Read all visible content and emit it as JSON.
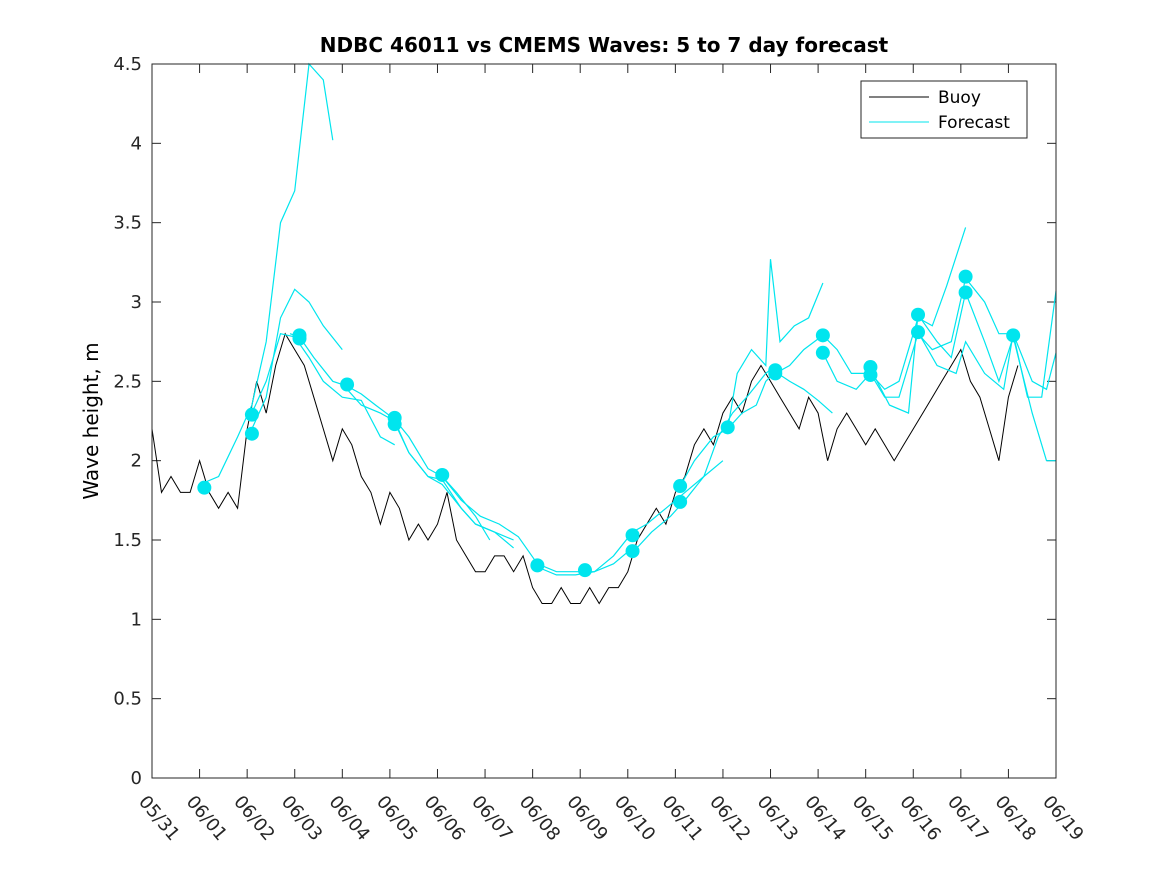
{
  "chart_data": {
    "type": "line",
    "title": "NDBC 46011 vs CMEMS Waves: 5 to 7 day forecast",
    "xlabel": "",
    "ylabel": "Wave height, m",
    "xlim": [
      0,
      19
    ],
    "ylim": [
      0,
      4.5
    ],
    "grid": false,
    "legend_position": "top-right",
    "x_tick_labels": [
      "05/31",
      "06/01",
      "06/02",
      "06/03",
      "06/04",
      "06/05",
      "06/06",
      "06/07",
      "06/08",
      "06/09",
      "06/10",
      "06/11",
      "06/12",
      "06/13",
      "06/14",
      "06/15",
      "06/16",
      "06/17",
      "06/18",
      "06/19"
    ],
    "y_ticks": [
      0,
      0.5,
      1,
      1.5,
      2,
      2.5,
      3,
      3.5,
      4,
      4.5
    ],
    "y_tick_labels": [
      "0",
      "0.5",
      "1",
      "1.5",
      "2",
      "2.5",
      "3",
      "3.5",
      "4",
      "4.5"
    ],
    "x_unit_note": "x values are days after 05/31 00:00",
    "series": [
      {
        "name": "Buoy",
        "color": "#000000",
        "x": [
          0,
          0.2,
          0.4,
          0.6,
          0.8,
          1.0,
          1.2,
          1.4,
          1.6,
          1.8,
          2.0,
          2.2,
          2.4,
          2.6,
          2.8,
          3.0,
          3.2,
          3.4,
          3.6,
          3.8,
          4.0,
          4.2,
          4.4,
          4.6,
          4.8,
          5.0,
          5.2,
          5.4,
          5.6,
          5.8,
          6.0,
          6.2,
          6.4,
          6.6,
          6.8,
          7.0,
          7.2,
          7.4,
          7.6,
          7.8,
          8.0,
          8.2,
          8.4,
          8.6,
          8.8,
          9.0,
          9.2,
          9.4,
          9.6,
          9.8,
          10.0,
          10.2,
          10.4,
          10.6,
          10.8,
          11.0,
          11.2,
          11.4,
          11.6,
          11.8,
          12.0,
          12.2,
          12.4,
          12.6,
          12.8,
          13.0,
          13.2,
          13.4,
          13.6,
          13.8,
          14.0,
          14.2,
          14.4,
          14.6,
          14.8,
          15.0,
          15.2,
          15.4,
          15.6,
          15.8,
          16.0,
          16.2,
          16.4,
          16.6,
          16.8,
          17.0,
          17.2,
          17.4,
          17.6,
          17.8,
          18.0,
          18.2
        ],
        "values": [
          2.2,
          1.8,
          1.9,
          1.8,
          1.8,
          2.0,
          1.8,
          1.7,
          1.8,
          1.7,
          2.2,
          2.5,
          2.3,
          2.6,
          2.8,
          2.7,
          2.6,
          2.4,
          2.2,
          2.0,
          2.2,
          2.1,
          1.9,
          1.8,
          1.6,
          1.8,
          1.7,
          1.5,
          1.6,
          1.5,
          1.6,
          1.8,
          1.5,
          1.4,
          1.3,
          1.3,
          1.4,
          1.4,
          1.3,
          1.4,
          1.2,
          1.1,
          1.1,
          1.2,
          1.1,
          1.1,
          1.2,
          1.1,
          1.2,
          1.2,
          1.3,
          1.5,
          1.6,
          1.7,
          1.6,
          1.8,
          1.9,
          2.1,
          2.2,
          2.1,
          2.3,
          2.4,
          2.3,
          2.5,
          2.6,
          2.5,
          2.4,
          2.3,
          2.2,
          2.4,
          2.3,
          2.0,
          2.2,
          2.3,
          2.2,
          2.1,
          2.2,
          2.1,
          2.0,
          2.1,
          2.2,
          2.3,
          2.4,
          2.5,
          2.6,
          2.7,
          2.5,
          2.4,
          2.2,
          2.0,
          2.4,
          2.6
        ]
      },
      {
        "name": "Forecast",
        "color": "#00e5ee",
        "segments": [
          {
            "x": [
              1.0,
              1.4,
              1.8,
              2.1,
              2.4,
              2.7,
              3.0,
              3.3,
              3.6,
              3.8
            ],
            "values": [
              1.85,
              1.9,
              2.15,
              2.35,
              2.75,
              3.5,
              3.7,
              4.5,
              4.4,
              4.02
            ]
          },
          {
            "x": [
              2.1,
              2.4,
              2.7,
              3.0,
              3.3,
              3.6,
              4.0
            ],
            "values": [
              2.2,
              2.4,
              2.9,
              3.08,
              3.0,
              2.85,
              2.7
            ]
          },
          {
            "x": [
              2.1,
              2.4,
              2.7,
              3.0,
              3.3,
              3.6,
              4.0,
              4.4,
              4.8,
              5.1
            ],
            "values": [
              2.3,
              2.5,
              2.8,
              2.78,
              2.65,
              2.5,
              2.4,
              2.38,
              2.15,
              2.1
            ]
          },
          {
            "x": [
              2.9,
              3.1,
              3.4,
              3.8,
              4.1,
              4.4,
              4.7,
              5.1,
              5.4,
              5.8,
              6.1,
              6.4,
              6.8,
              7.1
            ],
            "values": [
              2.8,
              2.78,
              2.65,
              2.5,
              2.47,
              2.42,
              2.35,
              2.26,
              2.15,
              1.95,
              1.9,
              1.8,
              1.65,
              1.5
            ]
          },
          {
            "x": [
              4.1,
              4.4,
              4.8,
              5.1,
              5.4,
              5.8,
              6.1,
              6.5,
              6.8,
              7.2,
              7.6
            ],
            "values": [
              2.45,
              2.35,
              2.3,
              2.25,
              2.05,
              1.9,
              1.88,
              1.7,
              1.6,
              1.55,
              1.5
            ]
          },
          {
            "x": [
              5.1,
              5.4,
              5.8,
              6.1,
              6.5,
              6.8,
              7.2,
              7.6
            ],
            "values": [
              2.24,
              2.05,
              1.9,
              1.85,
              1.7,
              1.6,
              1.55,
              1.45
            ]
          },
          {
            "x": [
              6.1,
              6.5,
              6.9,
              7.3,
              7.7,
              8.1,
              8.5,
              8.9,
              9.3,
              9.7,
              10.1
            ],
            "values": [
              1.9,
              1.75,
              1.65,
              1.6,
              1.52,
              1.35,
              1.3,
              1.3,
              1.3,
              1.35,
              1.45
            ]
          },
          {
            "x": [
              8.1,
              8.5,
              8.9,
              9.3,
              9.7,
              10.1,
              10.4,
              10.8,
              11.2,
              11.6,
              12.0
            ],
            "values": [
              1.33,
              1.28,
              1.28,
              1.3,
              1.4,
              1.55,
              1.6,
              1.7,
              1.8,
              1.9,
              2.0
            ]
          },
          {
            "x": [
              10.1,
              10.5,
              10.9,
              11.2,
              11.6,
              11.9,
              12.2,
              12.5,
              12.9,
              13.1
            ],
            "values": [
              1.42,
              1.55,
              1.65,
              1.75,
              1.9,
              2.15,
              2.3,
              2.4,
              2.55,
              2.6
            ]
          },
          {
            "x": [
              11.1,
              11.4,
              11.8,
              12.1,
              12.4,
              12.7,
              12.9,
              13.1,
              13.4,
              13.7,
              14.0,
              14.3
            ],
            "values": [
              1.84,
              2.0,
              2.15,
              2.2,
              2.3,
              2.35,
              2.5,
              2.56,
              2.5,
              2.45,
              2.38,
              2.3
            ]
          },
          {
            "x": [
              12.1,
              12.3,
              12.6,
              12.9,
              13.0,
              13.2,
              13.5,
              13.8,
              14.1
            ],
            "values": [
              2.2,
              2.55,
              2.7,
              2.6,
              3.27,
              2.75,
              2.85,
              2.9,
              3.12
            ]
          },
          {
            "x": [
              13.1,
              13.4,
              13.7,
              14.1,
              14.4,
              14.7,
              15.1,
              15.4,
              15.7,
              16.1,
              16.4,
              16.7,
              17.1
            ],
            "values": [
              2.55,
              2.6,
              2.7,
              2.79,
              2.7,
              2.55,
              2.55,
              2.45,
              2.5,
              2.9,
              2.85,
              3.1,
              3.47
            ]
          },
          {
            "x": [
              14.1,
              14.4,
              14.8,
              15.1,
              15.4,
              15.7,
              16.1,
              16.4,
              16.8,
              17.1,
              17.5,
              17.8,
              18.1,
              18.4,
              18.7,
              19.0
            ],
            "values": [
              2.68,
              2.5,
              2.45,
              2.55,
              2.4,
              2.4,
              2.8,
              2.7,
              2.75,
              3.15,
              3.0,
              2.8,
              2.8,
              2.4,
              2.4,
              3.07
            ]
          },
          {
            "x": [
              15.1,
              15.5,
              15.9,
              16.1,
              16.5,
              16.8,
              17.1,
              17.5,
              17.8,
              18.1,
              18.5,
              18.8,
              19.0
            ],
            "values": [
              2.58,
              2.35,
              2.3,
              2.92,
              2.75,
              2.65,
              3.06,
              2.75,
              2.5,
              2.78,
              2.3,
              2.0,
              2.0
            ]
          },
          {
            "x": [
              16.1,
              16.5,
              16.9,
              17.1,
              17.5,
              17.9,
              18.1,
              18.5,
              18.8,
              19.0
            ],
            "values": [
              2.81,
              2.6,
              2.55,
              2.75,
              2.55,
              2.45,
              2.8,
              2.5,
              2.45,
              2.68
            ]
          }
        ],
        "markers": {
          "x": [
            1.1,
            2.1,
            2.1,
            3.1,
            3.1,
            4.1,
            5.1,
            5.1,
            6.1,
            8.1,
            9.1,
            10.1,
            10.1,
            11.1,
            11.1,
            12.1,
            13.1,
            13.1,
            14.1,
            14.1,
            15.1,
            15.1,
            16.1,
            16.1,
            17.1,
            17.1,
            18.1
          ],
          "values": [
            1.83,
            2.29,
            2.17,
            2.79,
            2.77,
            2.48,
            2.27,
            2.23,
            1.91,
            1.34,
            1.31,
            1.53,
            1.43,
            1.84,
            1.74,
            2.21,
            2.57,
            2.55,
            2.79,
            2.68,
            2.59,
            2.54,
            2.92,
            2.81,
            3.16,
            3.06,
            2.79
          ]
        }
      }
    ]
  }
}
